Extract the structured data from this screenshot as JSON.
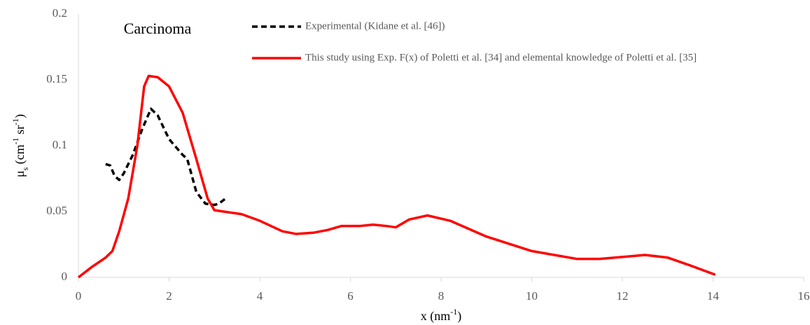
{
  "chart_data": {
    "type": "line",
    "annotation": "Carcinoma",
    "x_label": [
      {
        "text": "x (nm"
      },
      {
        "text": "-1",
        "shift": "super"
      },
      {
        "text": ")"
      }
    ],
    "y_label": [
      {
        "text": "μ"
      },
      {
        "text": "s",
        "shift": "sub"
      },
      {
        "text": " (cm"
      },
      {
        "text": "-1",
        "shift": "super"
      },
      {
        "text": " sr"
      },
      {
        "text": "-1",
        "shift": "super"
      },
      {
        "text": ")"
      }
    ],
    "xlim": [
      0,
      16
    ],
    "xticks": [
      0,
      2,
      4,
      6,
      8,
      10,
      12,
      14,
      16
    ],
    "ylim": [
      0,
      0.2
    ],
    "yticks": [
      0,
      0.05,
      0.1,
      0.15,
      0.2
    ],
    "grid": false,
    "series": [
      {
        "name": "Experimental (Kidane et al. [46])",
        "color": "#000000",
        "dash": true,
        "x": [
          0.6,
          0.7,
          0.8,
          0.9,
          1.0,
          1.2,
          1.4,
          1.6,
          1.75,
          2.0,
          2.3,
          2.4,
          2.6,
          2.8,
          3.0,
          3.1,
          3.25
        ],
        "values": [
          0.086,
          0.085,
          0.077,
          0.074,
          0.079,
          0.093,
          0.112,
          0.128,
          0.123,
          0.105,
          0.093,
          0.09,
          0.065,
          0.056,
          0.055,
          0.056,
          0.06
        ]
      },
      {
        "name": "This study using Exp. F(x) of Poletti et al. [34] and elemental knowledge of Poletti et al. [35]",
        "color": "#ff0000",
        "dash": false,
        "x": [
          0,
          0.3,
          0.6,
          0.75,
          0.9,
          1.1,
          1.3,
          1.45,
          1.55,
          1.75,
          2.0,
          2.3,
          2.6,
          2.85,
          3.0,
          3.2,
          3.6,
          4.0,
          4.5,
          4.8,
          5.2,
          5.5,
          5.8,
          6.2,
          6.5,
          6.8,
          7.0,
          7.3,
          7.7,
          8.2,
          9.0,
          10.0,
          11.0,
          11.5,
          12.5,
          13.0,
          13.5,
          14.05
        ],
        "values": [
          0,
          0.008,
          0.015,
          0.02,
          0.035,
          0.06,
          0.1,
          0.145,
          0.153,
          0.152,
          0.145,
          0.125,
          0.09,
          0.06,
          0.051,
          0.05,
          0.048,
          0.043,
          0.035,
          0.033,
          0.034,
          0.036,
          0.039,
          0.039,
          0.04,
          0.039,
          0.038,
          0.044,
          0.047,
          0.043,
          0.031,
          0.02,
          0.014,
          0.014,
          0.017,
          0.015,
          0.009,
          0.002
        ]
      }
    ]
  }
}
